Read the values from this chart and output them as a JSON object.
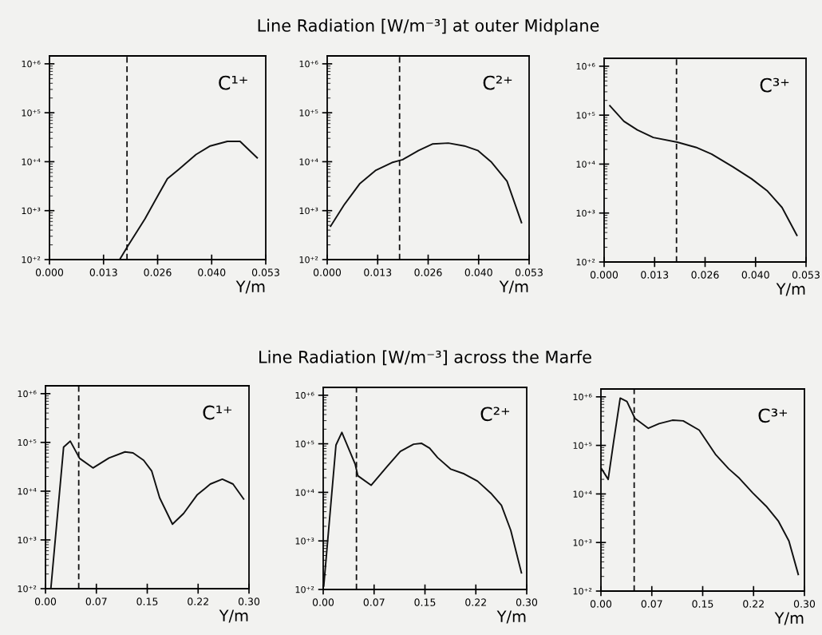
{
  "chart_data": [
    {
      "type": "line",
      "annotations": [
        "C¹⁺"
      ],
      "xlabel": "Y/m",
      "color": "#111111",
      "line_style": "solid",
      "log": "y",
      "grid": false,
      "legend": false,
      "x": [
        0.0172,
        0.0192,
        0.0234,
        0.0268,
        0.0289,
        0.0317,
        0.0359,
        0.0394,
        0.0436,
        0.0467,
        0.0509
      ],
      "values": [
        100,
        190,
        680,
        2200,
        4500,
        7000,
        14000,
        21000,
        26000,
        26000,
        12000
      ],
      "xlim": [
        0,
        0.053
      ],
      "xticks": [
        {
          "value": 0,
          "label": "0.000"
        },
        {
          "value": 0.01325,
          "label": "0.013"
        },
        {
          "value": 0.0265,
          "label": "0.026"
        },
        {
          "value": 0.03975,
          "label": "0.040"
        },
        {
          "value": 0.053,
          "label": "0.053"
        }
      ],
      "ylim": [
        100,
        1450000
      ],
      "yticks": [
        {
          "value": 100,
          "label": "10⁺²"
        },
        {
          "value": 1000,
          "label": "10⁺³"
        },
        {
          "value": 10000,
          "label": "10⁺⁴"
        },
        {
          "value": 100000,
          "label": "10⁺⁵"
        },
        {
          "value": 1000000,
          "label": "10⁺⁶"
        }
      ],
      "ref_lines": [
        {
          "axis": "x",
          "value": 0.019,
          "line_style": "dashed",
          "color": "#111111"
        }
      ]
    },
    {
      "type": "line",
      "title": "Line Radiation [W/m⁻³] at outer Midplane",
      "annotations": [
        "C²⁺"
      ],
      "xlabel": "Y/m",
      "color": "#111111",
      "line_style": "solid",
      "log": "y",
      "grid": false,
      "legend": false,
      "x": [
        0.0009,
        0.0044,
        0.0086,
        0.0128,
        0.017,
        0.0198,
        0.024,
        0.0276,
        0.0318,
        0.036,
        0.0395,
        0.043,
        0.0472,
        0.051
      ],
      "values": [
        480,
        1300,
        3600,
        6700,
        9600,
        11000,
        17000,
        23000,
        24000,
        21000,
        17000,
        10000,
        4000,
        570
      ],
      "xlim": [
        0,
        0.053
      ],
      "xticks": [
        {
          "value": 0,
          "label": "0.000"
        },
        {
          "value": 0.01325,
          "label": "0.013"
        },
        {
          "value": 0.0265,
          "label": "0.026"
        },
        {
          "value": 0.03975,
          "label": "0.040"
        },
        {
          "value": 0.053,
          "label": "0.053"
        }
      ],
      "ylim": [
        100,
        1450000
      ],
      "yticks": [
        {
          "value": 100,
          "label": "10⁺²"
        },
        {
          "value": 1000,
          "label": "10⁺³"
        },
        {
          "value": 10000,
          "label": "10⁺⁴"
        },
        {
          "value": 100000,
          "label": "10⁺⁵"
        },
        {
          "value": 1000000,
          "label": "10⁺⁶"
        }
      ],
      "ref_lines": [
        {
          "axis": "x",
          "value": 0.019,
          "line_style": "dashed",
          "color": "#111111"
        }
      ]
    },
    {
      "type": "line",
      "annotations": [
        "C³⁺"
      ],
      "xlabel": "Y/m",
      "color": "#111111",
      "line_style": "solid",
      "log": "y",
      "grid": false,
      "legend": false,
      "x": [
        0.0015,
        0.0052,
        0.0087,
        0.0129,
        0.0192,
        0.0241,
        0.0282,
        0.0338,
        0.0387,
        0.0429,
        0.0467,
        0.0506
      ],
      "values": [
        156000,
        75000,
        50000,
        35000,
        28000,
        22000,
        16000,
        8800,
        5000,
        2800,
        1300,
        350
      ],
      "xlim": [
        0,
        0.053
      ],
      "xticks": [
        {
          "value": 0,
          "label": "0.000"
        },
        {
          "value": 0.01325,
          "label": "0.013"
        },
        {
          "value": 0.0265,
          "label": "0.026"
        },
        {
          "value": 0.03975,
          "label": "0.040"
        },
        {
          "value": 0.053,
          "label": "0.053"
        }
      ],
      "ylim": [
        100,
        1450000
      ],
      "yticks": [
        {
          "value": 100,
          "label": "10⁺²"
        },
        {
          "value": 1000,
          "label": "10⁺³"
        },
        {
          "value": 10000,
          "label": "10⁺⁴"
        },
        {
          "value": 100000,
          "label": "10⁺⁵"
        },
        {
          "value": 1000000,
          "label": "10⁺⁶"
        }
      ],
      "ref_lines": [
        {
          "axis": "x",
          "value": 0.019,
          "line_style": "dashed",
          "color": "#111111"
        }
      ]
    },
    {
      "type": "line",
      "annotations": [
        "C¹⁺"
      ],
      "xlabel": "Y/m",
      "color": "#111111",
      "line_style": "solid",
      "log": "y",
      "grid": false,
      "legend": false,
      "x": [
        0.0079,
        0.0267,
        0.0366,
        0.0503,
        0.07,
        0.0936,
        0.1172,
        0.129,
        0.1447,
        0.1565,
        0.1683,
        0.1872,
        0.2037,
        0.2233,
        0.243,
        0.2607,
        0.2764,
        0.2921
      ],
      "values": [
        100,
        80000,
        106000,
        47000,
        30000,
        48000,
        64000,
        61000,
        43000,
        26000,
        7300,
        2100,
        3500,
        8300,
        14000,
        17600,
        14000,
        6900
      ],
      "xlim": [
        0,
        0.3
      ],
      "xticks": [
        {
          "value": 0,
          "label": "0.00"
        },
        {
          "value": 0.075,
          "label": "0.07"
        },
        {
          "value": 0.15,
          "label": "0.15"
        },
        {
          "value": 0.225,
          "label": "0.22"
        },
        {
          "value": 0.3,
          "label": "0.30"
        }
      ],
      "ylim": [
        100,
        1450000
      ],
      "yticks": [
        {
          "value": 100,
          "label": "10⁺²"
        },
        {
          "value": 1000,
          "label": "10⁺³"
        },
        {
          "value": 10000,
          "label": "10⁺⁴"
        },
        {
          "value": 100000,
          "label": "10⁺⁵"
        },
        {
          "value": 1000000,
          "label": "10⁺⁶"
        }
      ],
      "ref_lines": [
        {
          "axis": "x",
          "value": 0.049,
          "line_style": "dashed",
          "color": "#111111"
        }
      ]
    },
    {
      "type": "line",
      "title": "Line Radiation [W/m⁻³] across the Marfe",
      "annotations": [
        "C²⁺"
      ],
      "xlabel": "Y/m",
      "color": "#111111",
      "line_style": "solid",
      "log": "y",
      "grid": false,
      "legend": false,
      "x": [
        0.0008,
        0.0188,
        0.0275,
        0.0471,
        0.051,
        0.0706,
        0.0941,
        0.1137,
        0.1333,
        0.1451,
        0.1569,
        0.1686,
        0.1882,
        0.2078,
        0.2275,
        0.2471,
        0.2627,
        0.2765,
        0.2922
      ],
      "values": [
        118,
        94000,
        172000,
        38000,
        22000,
        14000,
        34000,
        70000,
        98000,
        102000,
        81000,
        52000,
        30000,
        24000,
        17000,
        9600,
        5400,
        1650,
        220
      ],
      "xlim": [
        0,
        0.3
      ],
      "xticks": [
        {
          "value": 0,
          "label": "0.00"
        },
        {
          "value": 0.075,
          "label": "0.07"
        },
        {
          "value": 0.15,
          "label": "0.15"
        },
        {
          "value": 0.225,
          "label": "0.22"
        },
        {
          "value": 0.3,
          "label": "0.30"
        }
      ],
      "ylim": [
        100,
        1450000
      ],
      "yticks": [
        {
          "value": 100,
          "label": "10⁺²"
        },
        {
          "value": 1000,
          "label": "10⁺³"
        },
        {
          "value": 10000,
          "label": "10⁺⁴"
        },
        {
          "value": 100000,
          "label": "10⁺⁵"
        },
        {
          "value": 1000000,
          "label": "10⁺⁶"
        }
      ],
      "ref_lines": [
        {
          "axis": "x",
          "value": 0.049,
          "line_style": "dashed",
          "color": "#111111"
        }
      ]
    },
    {
      "type": "line",
      "annotations": [
        "C³⁺"
      ],
      "xlabel": "Y/m",
      "color": "#111111",
      "line_style": "solid",
      "log": "y",
      "grid": false,
      "legend": false,
      "x": [
        0.0008,
        0.0107,
        0.0186,
        0.0284,
        0.0383,
        0.0501,
        0.0699,
        0.0857,
        0.1054,
        0.1212,
        0.1449,
        0.1686,
        0.1883,
        0.2041,
        0.2238,
        0.2436,
        0.2613,
        0.2771,
        0.2909
      ],
      "values": [
        33000,
        20000,
        116000,
        940000,
        800000,
        360000,
        225000,
        280000,
        330000,
        320000,
        206000,
        66000,
        33000,
        21000,
        10500,
        5600,
        2800,
        1080,
        220
      ],
      "xlim": [
        0,
        0.3
      ],
      "xticks": [
        {
          "value": 0,
          "label": "0.00"
        },
        {
          "value": 0.075,
          "label": "0.07"
        },
        {
          "value": 0.15,
          "label": "0.15"
        },
        {
          "value": 0.225,
          "label": "0.22"
        },
        {
          "value": 0.3,
          "label": "0.30"
        }
      ],
      "ylim": [
        100,
        1450000
      ],
      "yticks": [
        {
          "value": 100,
          "label": "10⁺²"
        },
        {
          "value": 1000,
          "label": "10⁺³"
        },
        {
          "value": 10000,
          "label": "10⁺⁴"
        },
        {
          "value": 100000,
          "label": "10⁺⁵"
        },
        {
          "value": 1000000,
          "label": "10⁺⁶"
        }
      ],
      "ref_lines": [
        {
          "axis": "x",
          "value": 0.049,
          "line_style": "dashed",
          "color": "#111111"
        }
      ]
    }
  ]
}
